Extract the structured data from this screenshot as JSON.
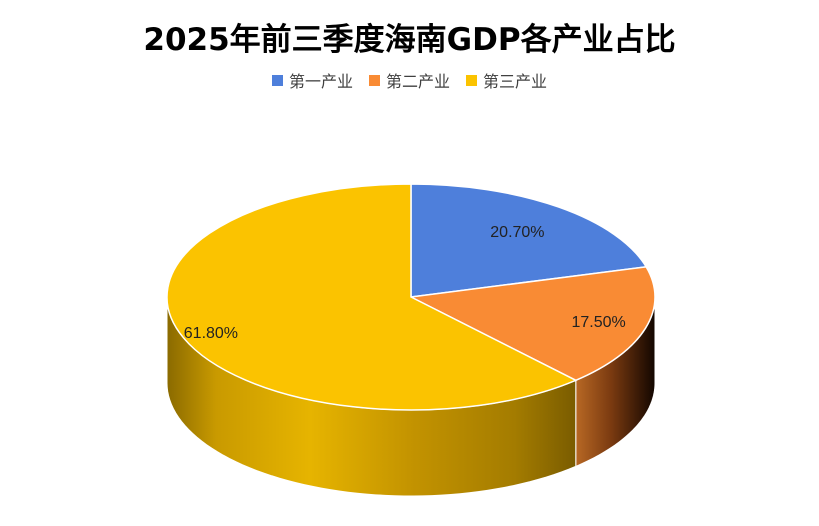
{
  "chart_data": {
    "type": "pie",
    "title": "2025年前三季度海南GDP各产业占比",
    "categories": [
      "第一产业",
      "第二产业",
      "第三产业"
    ],
    "values": [
      20.7,
      17.5,
      61.8
    ],
    "data_labels": [
      "20.70%",
      "17.50%",
      "61.80%"
    ],
    "colors": [
      "#4E7FDB",
      "#F98B34",
      "#FBC300"
    ],
    "legend_position": "top",
    "style": "3d"
  }
}
